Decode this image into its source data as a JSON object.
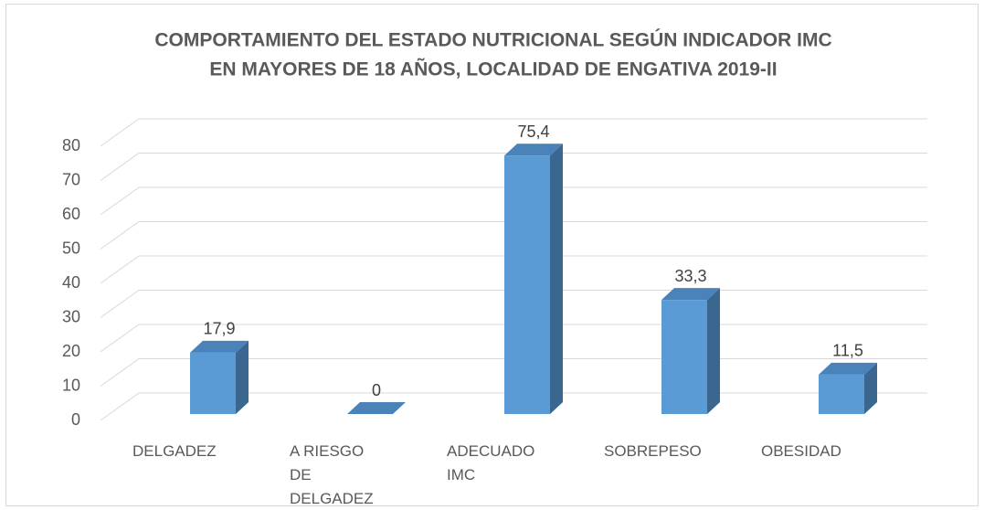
{
  "chart_data": {
    "type": "bar3d",
    "title": [
      "COMPORTAMIENTO DEL ESTADO NUTRICIONAL SEGÚN INDICADOR IMC",
      "EN MAYORES DE 18 AÑOS, LOCALIDAD DE ENGATIVA 2019-II"
    ],
    "categories": [
      "DELGADEZ",
      "A RIESGO DE DELGADEZ",
      "ADECUADO IMC",
      "SOBREPESO",
      "OBESIDAD"
    ],
    "values": [
      17.9,
      0,
      75.4,
      33.3,
      11.5
    ],
    "value_labels": [
      "17,9",
      "0",
      "75,4",
      "33,3",
      "11,5"
    ],
    "color": "#5b9bd5",
    "ylim": [
      0,
      80
    ],
    "yticks": [
      0,
      10,
      20,
      30,
      40,
      50,
      60,
      70,
      80
    ],
    "grid": true
  }
}
